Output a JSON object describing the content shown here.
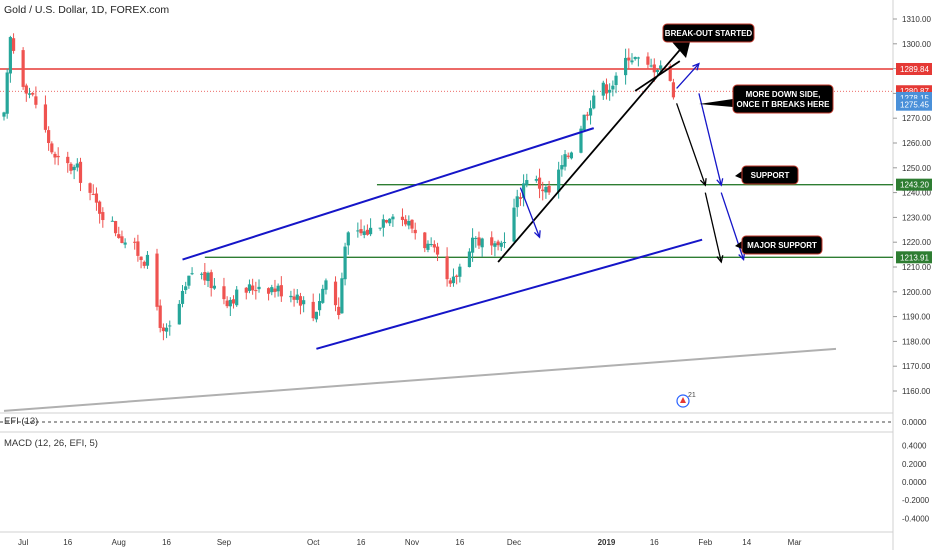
{
  "header": {
    "title": "Gold / U.S. Dollar, 1D, FOREX.com"
  },
  "colors": {
    "bull": "#26a69a",
    "bear": "#ef5350",
    "resistance_red": "#e53935",
    "support_green": "#2e7d32",
    "channel_blue": "#1515c8",
    "trend_black": "#000000",
    "long_trend_gray": "#b0b0b0",
    "price_tag_blue": "#4a90d9"
  },
  "chart_data": [
    {
      "type": "candlestick",
      "title": "Gold / U.S. Dollar, 1D, FOREX.com",
      "ylim": [
        1152,
        1313
      ],
      "x_tick_labels": [
        "Jul",
        "16",
        "Aug",
        "16",
        "Sep",
        "Oct",
        "16",
        "Nov",
        "16",
        "Dec",
        "2019",
        "16",
        "Feb",
        "14",
        "Mar"
      ],
      "y_tick_labels": [
        "1310.00",
        "1300.00",
        "1290.00",
        "1280.00",
        "1270.00",
        "1260.00",
        "1250.00",
        "1240.00",
        "1230.00",
        "1220.00",
        "1210.00",
        "1200.00",
        "1190.00",
        "1180.00",
        "1170.00",
        "1160.00"
      ],
      "y_ticks": [
        1310,
        1300,
        1290,
        1280,
        1270,
        1260,
        1250,
        1240,
        1230,
        1220,
        1210,
        1200,
        1190,
        1180,
        1170,
        1160
      ],
      "anchors": [
        {
          "date": "2018-06-26",
          "close": 1270
        },
        {
          "date": "2018-06-28",
          "close": 1302
        },
        {
          "date": "2018-07-02",
          "close": 1285
        },
        {
          "date": "2018-07-06",
          "close": 1276
        },
        {
          "date": "2018-07-12",
          "close": 1253
        },
        {
          "date": "2018-07-19",
          "close": 1249
        },
        {
          "date": "2018-07-25",
          "close": 1235
        },
        {
          "date": "2018-08-02",
          "close": 1222
        },
        {
          "date": "2018-08-10",
          "close": 1212
        },
        {
          "date": "2018-08-15",
          "close": 1182
        },
        {
          "date": "2018-08-17",
          "close": 1185
        },
        {
          "date": "2018-08-22",
          "close": 1201
        },
        {
          "date": "2018-08-24",
          "close": 1208
        },
        {
          "date": "2018-08-28",
          "close": 1206
        },
        {
          "date": "2018-09-04",
          "close": 1197
        },
        {
          "date": "2018-09-14",
          "close": 1203
        },
        {
          "date": "2018-09-26",
          "close": 1199
        },
        {
          "date": "2018-10-01",
          "close": 1190
        },
        {
          "date": "2018-10-05",
          "close": 1205
        },
        {
          "date": "2018-10-09",
          "close": 1191
        },
        {
          "date": "2018-10-11",
          "close": 1221
        },
        {
          "date": "2018-10-19",
          "close": 1225
        },
        {
          "date": "2018-10-26",
          "close": 1233
        },
        {
          "date": "2018-11-01",
          "close": 1226
        },
        {
          "date": "2018-11-08",
          "close": 1215
        },
        {
          "date": "2018-11-13",
          "close": 1201
        },
        {
          "date": "2018-11-20",
          "close": 1222
        },
        {
          "date": "2018-11-28",
          "close": 1216
        },
        {
          "date": "2018-12-03",
          "close": 1233
        },
        {
          "date": "2018-12-07",
          "close": 1247
        },
        {
          "date": "2018-12-14",
          "close": 1240
        },
        {
          "date": "2018-12-21",
          "close": 1258
        },
        {
          "date": "2018-12-28",
          "close": 1280
        },
        {
          "date": "2019-01-04",
          "close": 1285
        },
        {
          "date": "2019-01-08",
          "close": 1296
        },
        {
          "date": "2019-01-14",
          "close": 1290
        },
        {
          "date": "2019-01-18",
          "close": 1292
        },
        {
          "date": "2019-01-22",
          "close": 1281
        }
      ],
      "horizontal_levels": [
        {
          "value": 1289.84,
          "label": "1289.84",
          "style": "solid-red"
        },
        {
          "value": 1280.87,
          "label": "1280.87",
          "style": "dotted-red"
        },
        {
          "value": 1243.2,
          "label": "1243.20",
          "style": "solid-green"
        },
        {
          "value": 1213.91,
          "label": "1213.91",
          "style": "solid-green"
        }
      ],
      "price_tags": [
        {
          "value": 1278.15,
          "label": "1278.15"
        },
        {
          "value": 1275.45,
          "label": "1275.45"
        }
      ],
      "trendlines": [
        {
          "name": "channel-upper",
          "from": [
            "2018-08-21",
            1213
          ],
          "to": [
            "2018-12-28",
            1266
          ]
        },
        {
          "name": "channel-lower",
          "from": [
            "2018-10-02",
            1177
          ],
          "to": [
            "2019-01-31",
            1221
          ]
        },
        {
          "name": "rising-trendline",
          "from": [
            "2018-11-28",
            1212
          ],
          "to": [
            "2019-01-27",
            1302
          ]
        },
        {
          "name": "short-trendline",
          "from": [
            "2019-01-10",
            1281
          ],
          "to": [
            "2019-01-24",
            1293
          ]
        },
        {
          "name": "long-term-trendline",
          "from": [
            "2018-06-26",
            1152
          ],
          "to": [
            "2019-03-14",
            1177
          ]
        }
      ],
      "annotations": [
        {
          "text": "BREAK-OUT STARTED"
        },
        {
          "text": "MORE DOWN SIDE,\nONCE IT BREAKS HERE"
        },
        {
          "text": "SUPPORT"
        },
        {
          "text": "MAJOR SUPPORT"
        }
      ],
      "badge": "21"
    },
    {
      "type": "indicator",
      "label": "EFI (13)",
      "y_tick_labels": [
        "0.0000"
      ],
      "value": 0
    },
    {
      "type": "indicator",
      "label": "MACD (12, 26, EFI, 5)",
      "y_tick_labels": [
        "0.4000",
        "0.2000",
        "0.0000",
        "-0.2000",
        "-0.4000"
      ],
      "y_ticks": [
        0.4,
        0.2,
        0,
        -0.2,
        -0.4
      ]
    }
  ]
}
